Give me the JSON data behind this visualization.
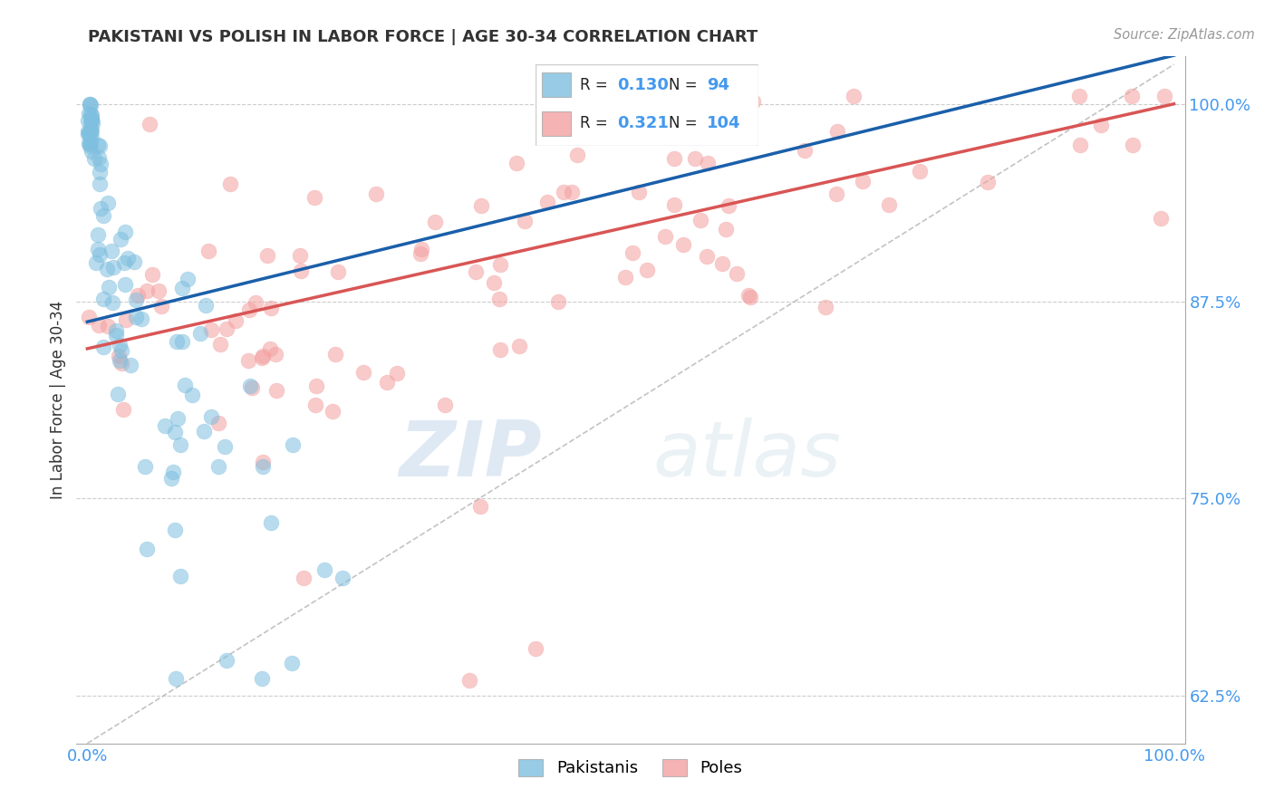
{
  "title": "PAKISTANI VS POLISH IN LABOR FORCE | AGE 30-34 CORRELATION CHART",
  "source_text": "Source: ZipAtlas.com",
  "ylabel": "In Labor Force | Age 30-34",
  "r_pakistani": 0.13,
  "n_pakistani": 94,
  "r_polish": 0.321,
  "n_polish": 104,
  "blue_color": "#7fbfdf",
  "pink_color": "#f4a0a0",
  "blue_line_color": "#1a5faa",
  "pink_line_color": "#d95555",
  "watermark_zip": "ZIP",
  "watermark_atlas": "atlas",
  "xlim": [
    -0.01,
    1.01
  ],
  "ylim": [
    0.595,
    1.03
  ],
  "yticks": [
    0.625,
    0.75,
    0.875,
    1.0
  ],
  "ytick_labels": [
    "62.5%",
    "75.0%",
    "87.5%",
    "100.0%"
  ],
  "xtick_labels": [
    "0.0%",
    "100.0%"
  ],
  "blue_trend_x0": 0.0,
  "blue_trend_y0": 0.862,
  "blue_trend_x1": 0.32,
  "blue_trend_y1": 0.916,
  "pink_trend_x0": 0.0,
  "pink_trend_y0": 0.845,
  "pink_trend_x1": 1.0,
  "pink_trend_y1": 1.0
}
